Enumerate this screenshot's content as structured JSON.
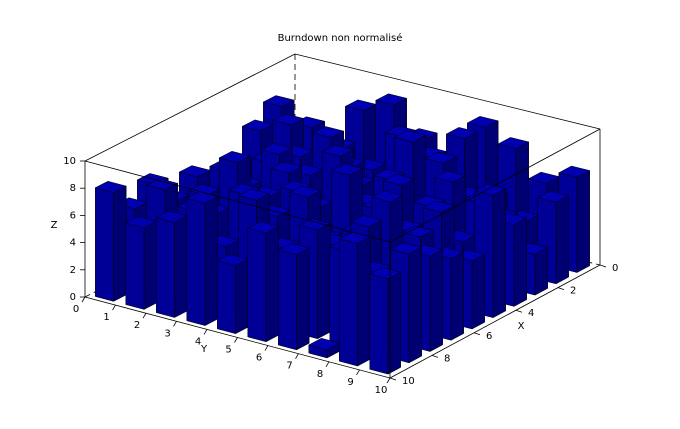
{
  "chart_data": {
    "type": "bar3d",
    "title": "Burndown non normalisé",
    "xlabel": "X",
    "ylabel": "Y",
    "zlabel": "Z",
    "x_ticks": [
      "0",
      "2",
      "4",
      "6",
      "8",
      "10"
    ],
    "y_ticks": [
      "0",
      "1",
      "2",
      "3",
      "4",
      "5",
      "6",
      "7",
      "8",
      "9",
      "10"
    ],
    "z_ticks": [
      "0",
      "2",
      "4",
      "6",
      "8",
      "10"
    ],
    "xlim": [
      0,
      10
    ],
    "ylim": [
      0,
      10
    ],
    "zlim": [
      0,
      10
    ],
    "bar_color": "#0000b0",
    "values": [
      [
        0,
        0.6,
        8,
        9,
        7,
        6,
        9,
        8,
        6,
        7
      ],
      [
        8,
        7,
        6,
        5,
        8,
        7,
        9,
        5,
        4,
        6
      ],
      [
        7,
        8,
        4,
        6,
        5,
        9,
        8,
        6,
        5,
        3
      ],
      [
        5,
        6,
        7,
        9,
        6,
        7,
        5,
        8,
        7,
        6
      ],
      [
        4,
        5,
        8,
        7,
        9,
        6,
        8,
        7,
        5,
        9
      ],
      [
        6,
        7,
        5,
        8,
        6,
        9,
        7,
        6,
        8,
        5
      ],
      [
        5,
        6,
        9,
        7,
        8,
        5,
        6,
        9,
        7,
        6
      ],
      [
        7,
        5,
        6,
        8,
        7,
        9,
        6,
        8,
        5,
        7
      ],
      [
        6,
        8,
        7,
        5,
        9,
        6,
        8,
        7,
        6,
        8
      ],
      [
        8,
        6,
        7,
        9,
        5,
        8,
        7,
        0.6,
        9,
        7
      ]
    ]
  }
}
